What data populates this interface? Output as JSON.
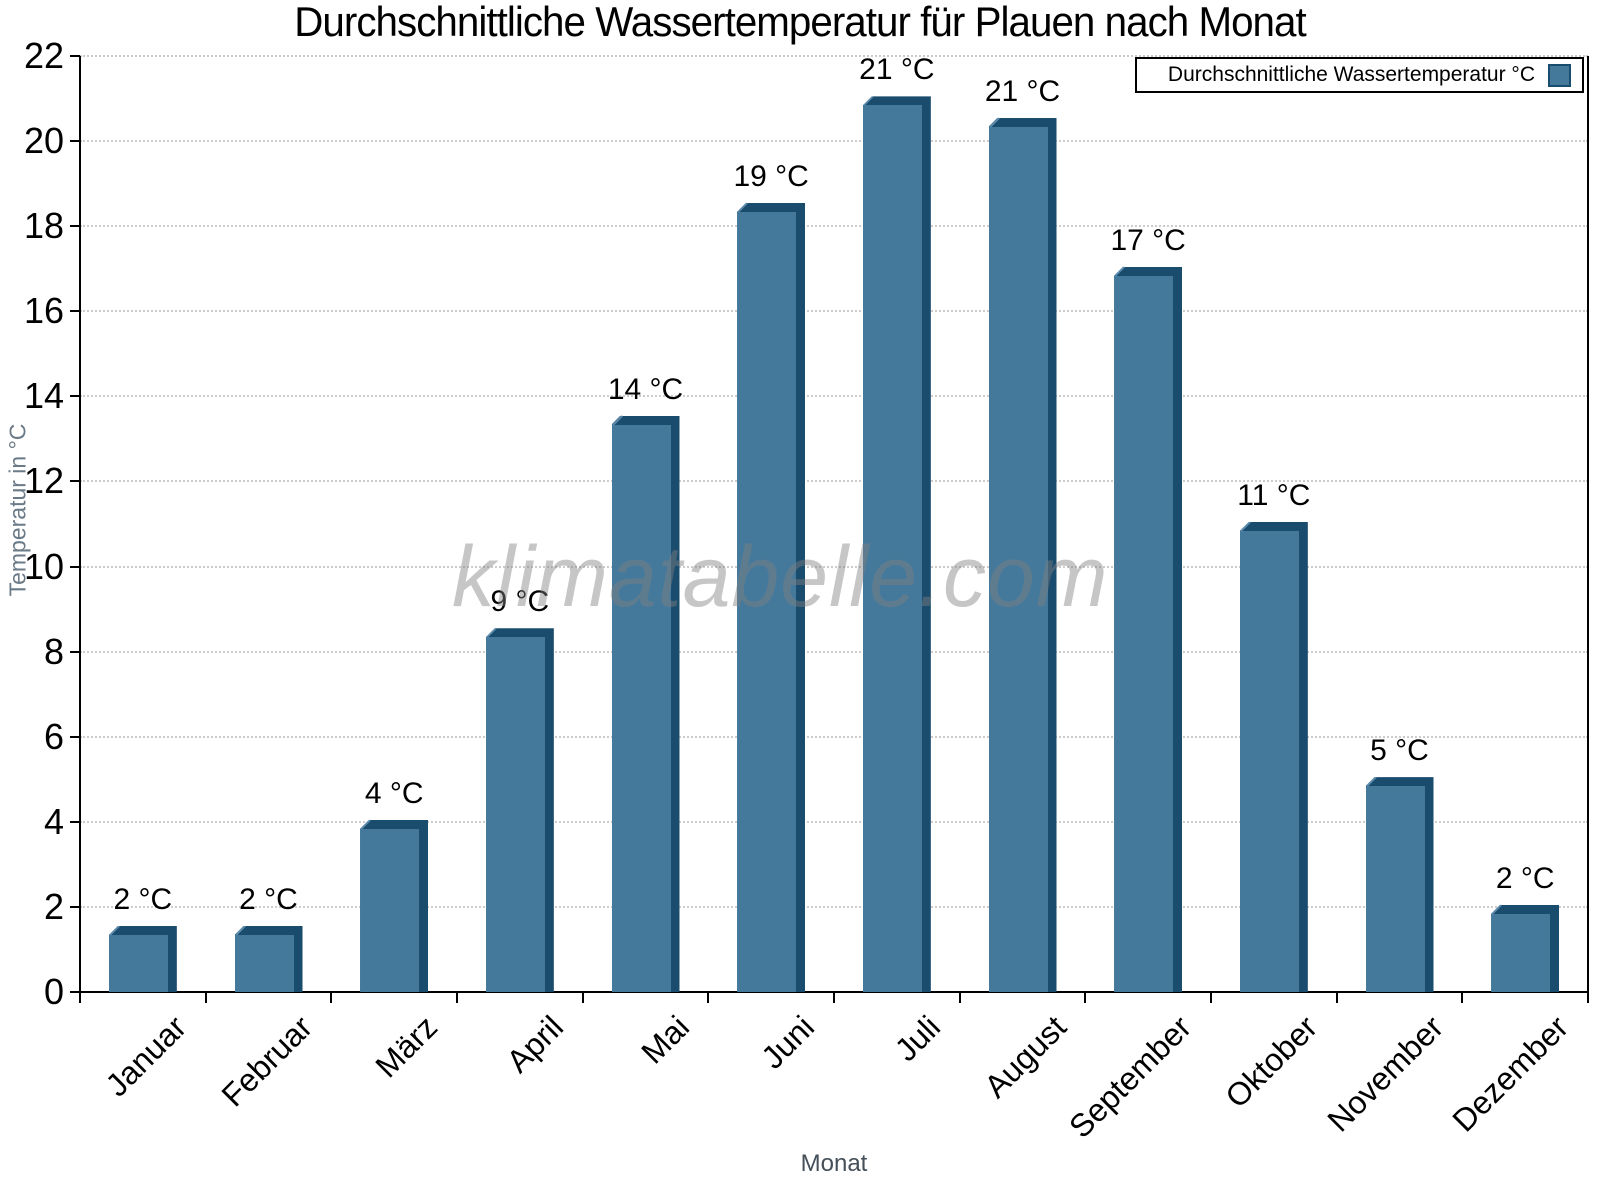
{
  "page": {
    "background": "#ffffff"
  },
  "chart_data": {
    "type": "bar",
    "title": "Durchschnittliche Wassertemperatur für Plauen nach Monat",
    "xlabel": "Monat",
    "ylabel": "Temperatur in °C",
    "watermark": "klimatabelle.com",
    "legend": {
      "label": "Durchschnittliche Wassertemperatur °C",
      "position": "top-right"
    },
    "categories": [
      "Januar",
      "Februar",
      "März",
      "April",
      "Mai",
      "Juni",
      "Juli",
      "August",
      "September",
      "Oktober",
      "November",
      "Dezember"
    ],
    "values": [
      1.55,
      1.55,
      4.05,
      8.55,
      13.55,
      18.55,
      21.05,
      20.55,
      17.05,
      11.05,
      5.05,
      2.05
    ],
    "bar_labels": [
      "2 °C",
      "2 °C",
      "4 °C",
      "9 °C",
      "14 °C",
      "19 °C",
      "21 °C",
      "21 °C",
      "17 °C",
      "11 °C",
      "5 °C",
      "2 °C"
    ],
    "ylim": [
      0,
      22
    ],
    "yticks": [
      0,
      2,
      4,
      6,
      8,
      10,
      12,
      14,
      16,
      18,
      20,
      22
    ],
    "grid": {
      "horizontal": true,
      "style": "dotted"
    },
    "colors": {
      "bar_face": "#44799C",
      "bar_edge": "#1A4C6E",
      "bar_highlight": "#5C8BAD",
      "grid": "#cccccc",
      "axis": "#000000",
      "ylabel_color": "#6b7a87",
      "xlabel_color": "#454f58",
      "watermark_color": "rgba(128,128,128,0.45)"
    }
  }
}
